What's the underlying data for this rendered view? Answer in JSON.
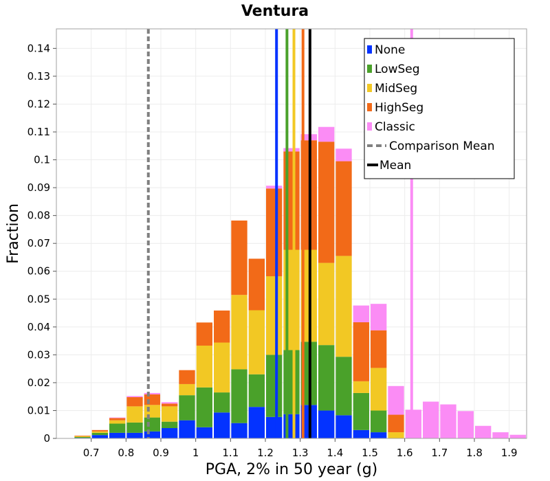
{
  "chart_data": {
    "type": "bar",
    "stacked": true,
    "title": "Ventura",
    "xlabel": "PGA, 2% in 50 year (g)",
    "ylabel": "Fraction",
    "xlim": [
      0.6,
      1.95
    ],
    "ylim": [
      0,
      0.147
    ],
    "grid": true,
    "legend_position": "top-right",
    "x_ticks": [
      "0.7",
      "0.8",
      "0.9",
      "1",
      "1.1",
      "1.2",
      "1.3",
      "1.4",
      "1.5",
      "1.6",
      "1.7",
      "1.8",
      "1.9"
    ],
    "y_ticks": [
      "0",
      "0.01",
      "0.02",
      "0.03",
      "0.04",
      "0.05",
      "0.06",
      "0.07",
      "0.08",
      "0.09",
      "0.1",
      "0.11",
      "0.12",
      "0.13",
      "0.14"
    ],
    "bin_width": 0.05,
    "bins": [
      0.625,
      0.675,
      0.725,
      0.775,
      0.825,
      0.875,
      0.925,
      0.975,
      1.025,
      1.075,
      1.125,
      1.175,
      1.225,
      1.275,
      1.325,
      1.375,
      1.425,
      1.475,
      1.525,
      1.575,
      1.625,
      1.675,
      1.725,
      1.775,
      1.825,
      1.875,
      1.925
    ],
    "series": [
      {
        "name": "None",
        "color": "#0433ff",
        "values": [
          0,
          0.0002,
          0.0012,
          0.002,
          0.002,
          0.0025,
          0.0037,
          0.0065,
          0.004,
          0.0093,
          0.0055,
          0.0113,
          0.0077,
          0.0087,
          0.012,
          0.01,
          0.0083,
          0.003,
          0.0022,
          0,
          0,
          0,
          0,
          0,
          0,
          0,
          0
        ]
      },
      {
        "name": "LowSeg",
        "color": "#4aa12a",
        "values": [
          0,
          0.0003,
          0.0008,
          0.0033,
          0.0037,
          0.005,
          0.0023,
          0.009,
          0.0143,
          0.0072,
          0.0193,
          0.0117,
          0.0223,
          0.023,
          0.0227,
          0.0235,
          0.021,
          0.0133,
          0.0078,
          0,
          0,
          0,
          0,
          0,
          0,
          0,
          0
        ]
      },
      {
        "name": "MidSeg",
        "color": "#f2c824",
        "values": [
          0,
          0.0003,
          0.0005,
          0.0012,
          0.0058,
          0.0045,
          0.0055,
          0.004,
          0.015,
          0.0179,
          0.0267,
          0.023,
          0.0282,
          0.036,
          0.033,
          0.0295,
          0.0362,
          0.0042,
          0.0153,
          0.0022,
          0,
          0,
          0,
          0,
          0,
          0,
          0
        ]
      },
      {
        "name": "HighSeg",
        "color": "#f26a18",
        "values": [
          0,
          0.0002,
          0.0005,
          0.0008,
          0.0033,
          0.0038,
          0.001,
          0.005,
          0.0083,
          0.0115,
          0.0267,
          0.0185,
          0.0315,
          0.0353,
          0.0393,
          0.0435,
          0.034,
          0.0212,
          0.0135,
          0.0063,
          0,
          0,
          0,
          0,
          0,
          0,
          0
        ]
      },
      {
        "name": "Classic",
        "color": "#fb8cf5",
        "values": [
          0,
          0,
          0,
          0.0002,
          0.0004,
          0.0005,
          0.0005,
          0,
          0,
          0,
          0,
          0,
          0.001,
          0.0012,
          0.0022,
          0.0053,
          0.0045,
          0.006,
          0.0095,
          0.0103,
          0.0103,
          0.0132,
          0.0122,
          0.0098,
          0.0045,
          0.0022,
          0.0013
        ]
      }
    ],
    "vertical_lines": [
      {
        "series": "None",
        "x": 1.232,
        "color": "#0433ff",
        "style": "solid"
      },
      {
        "series": "LowSeg",
        "x": 1.262,
        "color": "#4aa12a",
        "style": "solid"
      },
      {
        "series": "MidSeg",
        "x": 1.282,
        "color": "#f2c824",
        "style": "solid"
      },
      {
        "series": "HighSeg",
        "x": 1.308,
        "color": "#f26a18",
        "style": "solid"
      },
      {
        "series": "Classic",
        "x": 1.62,
        "color": "#fb8cf5",
        "style": "solid"
      },
      {
        "series": "Comparison Mean",
        "x": 0.864,
        "color": "#808080",
        "style": "dashed"
      },
      {
        "series": "Mean",
        "x": 1.328,
        "color": "#000000",
        "style": "solid"
      }
    ],
    "legend": [
      {
        "label": "None",
        "color": "#0433ff",
        "kind": "swatch"
      },
      {
        "label": "LowSeg",
        "color": "#4aa12a",
        "kind": "swatch"
      },
      {
        "label": "MidSeg",
        "color": "#f2c824",
        "kind": "swatch"
      },
      {
        "label": "HighSeg",
        "color": "#f26a18",
        "kind": "swatch"
      },
      {
        "label": "Classic",
        "color": "#fb8cf5",
        "kind": "swatch"
      },
      {
        "label": "Comparison Mean",
        "color": "#808080",
        "kind": "dashed"
      },
      {
        "label": "Mean",
        "color": "#000000",
        "kind": "line"
      }
    ]
  }
}
